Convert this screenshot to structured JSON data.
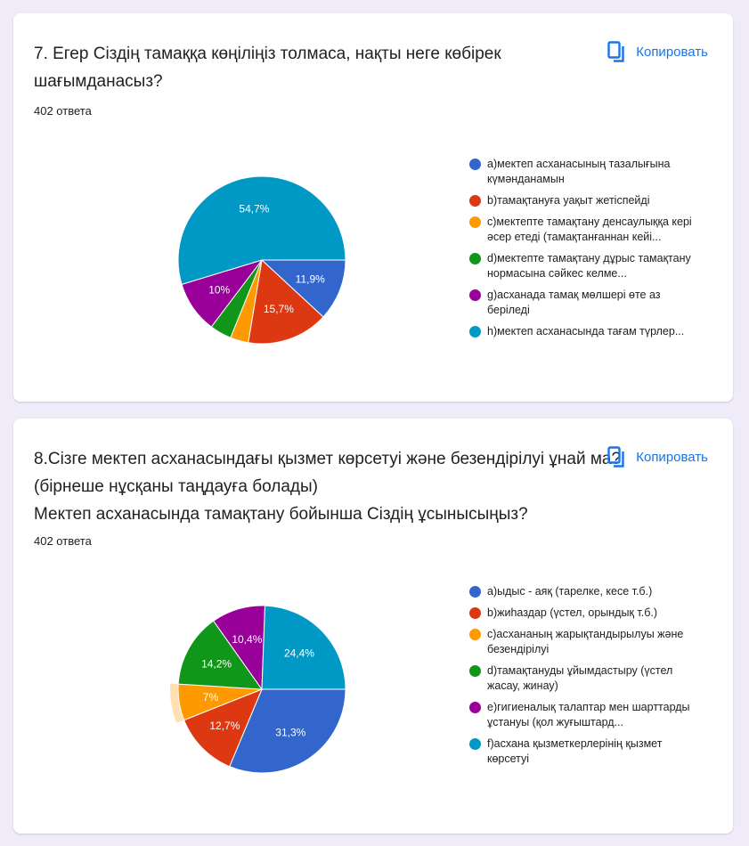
{
  "cards": [
    {
      "title_lines": [
        "7. Егер Сіздің тамаққа көңіліңіз толмаса, нақты неге көбірек",
        "шағымданасыз?"
      ],
      "count": "402 ответа",
      "copy_label": "Копировать",
      "icons": {
        "copy": "copy-icon"
      }
    },
    {
      "title_lines": [
        "8.Сізге мектеп асханасындағы қызмет көрсетуі және безендірілуі ұнай ма?",
        "(бірнеше нұсқаны таңдауға болады)",
        "Мектеп асханасында тамақтану бойынша Сіздің ұсынысыңыз?"
      ],
      "count": "402 ответа",
      "copy_label": "Копировать",
      "icons": {
        "copy": "copy-icon"
      }
    }
  ],
  "chart_data": [
    {
      "type": "pie",
      "title": "",
      "slices": [
        {
          "label": "a)мектеп асханасының тазалығына күмәнданамын",
          "value": 11.9,
          "display": "11,9%",
          "color": "#3366cc"
        },
        {
          "label": "b)тамақтануға уақыт жетіспейді",
          "value": 15.7,
          "display": "15,7%",
          "color": "#dc3912"
        },
        {
          "label": "c)мектепте тамақтану денсаулыққа кері әсер етеді (тамақтанғаннан кейі...",
          "value": 3.5,
          "display": "",
          "color": "#ff9900"
        },
        {
          "label": "d)мектепте тамақтану дұрыс тамақтану нормасына сәйкес келме...",
          "value": 4.2,
          "display": "",
          "color": "#109618"
        },
        {
          "label": "g)асханада тамақ мөлшері өте аз беріледі",
          "value": 10.0,
          "display": "10%",
          "color": "#990099"
        },
        {
          "label": "h)мектеп асханасында тағам түрлер...",
          "value": 54.7,
          "display": "54,7%",
          "color": "#0099c6"
        }
      ]
    },
    {
      "type": "pie",
      "title": "",
      "slices": [
        {
          "label": "a)ыдыс - аяқ (тарелке, кесе т.б.)",
          "value": 31.3,
          "display": "31,3%",
          "color": "#3366cc"
        },
        {
          "label": "b)жиһаздар (үстел, орындық т.б.)",
          "value": 12.7,
          "display": "12,7%",
          "color": "#dc3912"
        },
        {
          "label": "c)асхананың жарықтандырылуы және безендірілуі",
          "value": 7.0,
          "display": "7%",
          "color": "#ff9900",
          "highlighted": true
        },
        {
          "label": "d)тамақтануды ұйымдастыру (үстел жасау, жинау)",
          "value": 14.2,
          "display": "14,2%",
          "color": "#109618"
        },
        {
          "label": "e)гигиеналық талаптар мен шарттарды ұстануы (қол жуғыштард...",
          "value": 10.4,
          "display": "10,4%",
          "color": "#990099"
        },
        {
          "label": "f)асхана қызметкерлерінің қызмет көрсетуі",
          "value": 24.4,
          "display": "24,4%",
          "color": "#0099c6"
        }
      ]
    }
  ]
}
